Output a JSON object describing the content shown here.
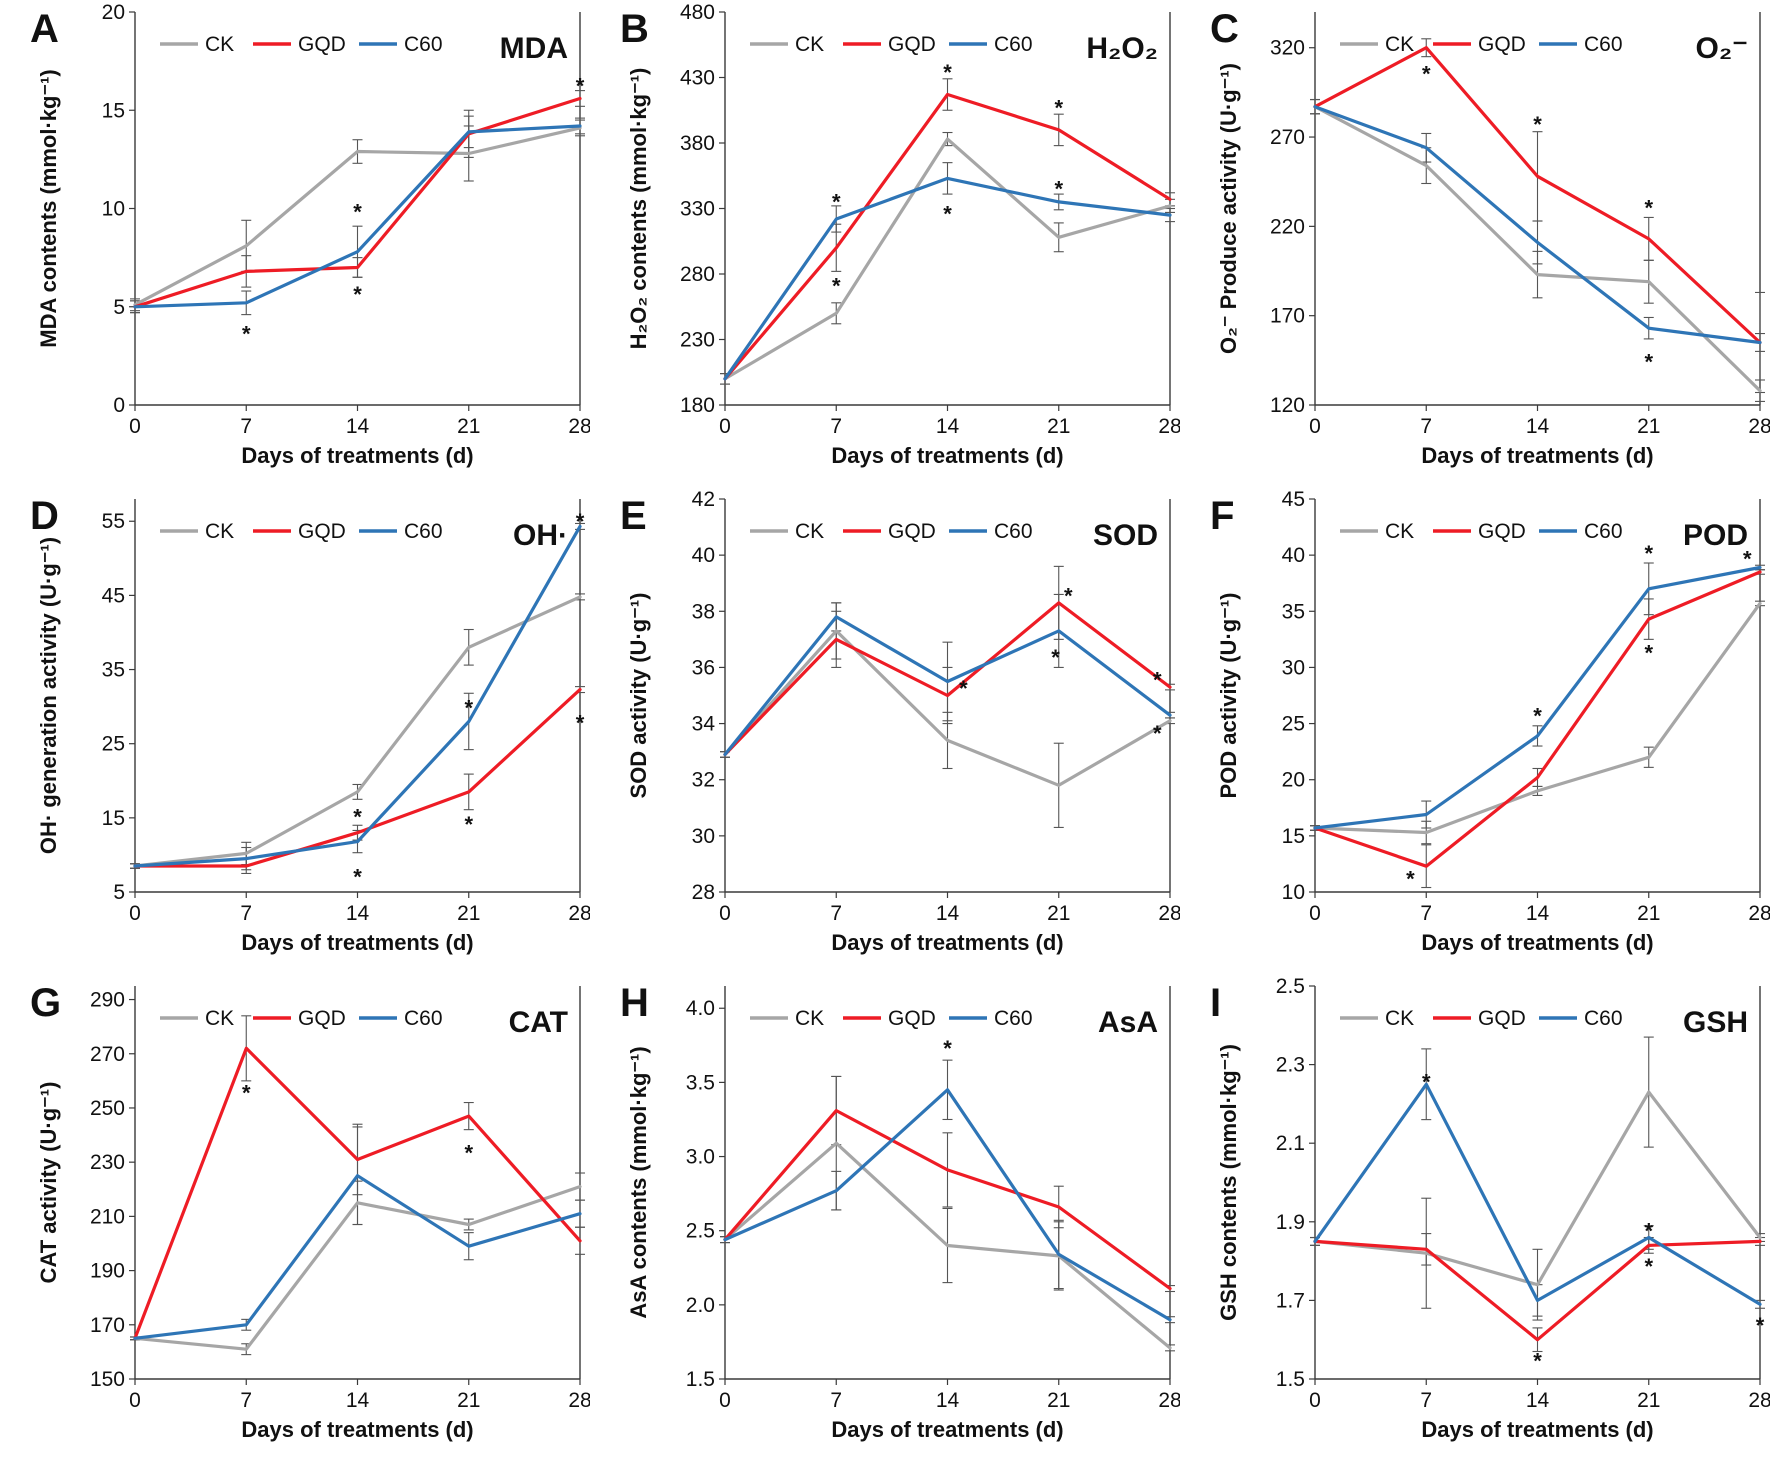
{
  "colors": {
    "CK": "#a6a6a6",
    "GQD": "#ee1c25",
    "C60": "#2e75b6"
  },
  "chart_data": [
    {
      "type": "line",
      "panel": "A",
      "metric": "MDA",
      "ylabel": "MDA contents (mmol·kg⁻¹)",
      "xlabel": "Days of treatments (d)",
      "x": [
        0,
        7,
        14,
        21,
        28
      ],
      "ylim": [
        0,
        20
      ],
      "yticks": [
        0,
        5,
        10,
        15,
        20
      ],
      "series": [
        {
          "name": "CK",
          "values": [
            5.1,
            8.1,
            12.9,
            12.8,
            14.1
          ],
          "err": [
            0.3,
            1.3,
            0.6,
            1.4,
            0.4
          ]
        },
        {
          "name": "GQD",
          "values": [
            5.0,
            6.8,
            7.0,
            13.8,
            15.6
          ],
          "err": [
            0.3,
            0.8,
            0.5,
            1.2,
            0.4
          ]
        },
        {
          "name": "C60",
          "values": [
            5.0,
            5.2,
            7.8,
            13.9,
            14.2
          ],
          "err": [
            0.3,
            0.6,
            1.3,
            0.8,
            0.4
          ]
        }
      ],
      "stars": [
        [
          7,
          3.7
        ],
        [
          14,
          9.9
        ],
        [
          14,
          5.7
        ],
        [
          28,
          16.3
        ]
      ]
    },
    {
      "type": "line",
      "panel": "B",
      "metric": "H₂O₂",
      "ylabel": "H₂O₂ contents (mmol·kg⁻¹)",
      "xlabel": "Days of treatments (d)",
      "x": [
        0,
        7,
        14,
        21,
        28
      ],
      "ylim": [
        180,
        480
      ],
      "yticks": [
        180,
        230,
        280,
        330,
        380,
        430,
        480
      ],
      "series": [
        {
          "name": "CK",
          "values": [
            200,
            250,
            383,
            308,
            332
          ],
          "err": [
            4,
            8,
            5,
            11,
            5
          ]
        },
        {
          "name": "GQD",
          "values": [
            200,
            300,
            417,
            390,
            337
          ],
          "err": [
            4,
            18,
            12,
            12,
            5
          ]
        },
        {
          "name": "C60",
          "values": [
            200,
            322,
            353,
            335,
            325
          ],
          "err": [
            4,
            10,
            12,
            6,
            5
          ]
        }
      ],
      "stars": [
        [
          7,
          336
        ],
        [
          7,
          272
        ],
        [
          14,
          435
        ],
        [
          14,
          327
        ],
        [
          21,
          408
        ],
        [
          21,
          346
        ]
      ]
    },
    {
      "type": "line",
      "panel": "C",
      "metric": "O₂⁻",
      "ylabel": "O₂⁻ Produce activity (U·g⁻¹)",
      "xlabel": "Days of treatments (d)",
      "x": [
        0,
        7,
        14,
        21,
        28
      ],
      "ylim": [
        120,
        340
      ],
      "yticks": [
        120,
        170,
        220,
        270,
        320
      ],
      "series": [
        {
          "name": "CK",
          "values": [
            287,
            254,
            193,
            189,
            128
          ],
          "err": [
            4,
            10,
            13,
            12,
            6
          ]
        },
        {
          "name": "GQD",
          "values": [
            287,
            320,
            248,
            213,
            155
          ],
          "err": [
            4,
            5,
            25,
            12,
            28
          ]
        },
        {
          "name": "C60",
          "values": [
            287,
            264,
            211,
            163,
            155
          ],
          "err": [
            4,
            8,
            12,
            6,
            5
          ]
        }
      ],
      "stars": [
        [
          7,
          306
        ],
        [
          14,
          278
        ],
        [
          21,
          231
        ],
        [
          21,
          145
        ]
      ]
    },
    {
      "type": "line",
      "panel": "D",
      "metric": "OH·",
      "ylabel": "OH· generation activity (U·g⁻¹)",
      "xlabel": "Days of treatments (d)",
      "x": [
        0,
        7,
        14,
        21,
        28
      ],
      "ylim": [
        5,
        58
      ],
      "yticks": [
        5,
        15,
        25,
        35,
        45,
        55
      ],
      "series": [
        {
          "name": "CK",
          "values": [
            8.5,
            10.2,
            18.5,
            38.0,
            44.8
          ],
          "err": [
            0.3,
            1.5,
            1.0,
            2.4,
            0.4
          ]
        },
        {
          "name": "GQD",
          "values": [
            8.5,
            8.5,
            13.0,
            18.5,
            32.3
          ],
          "err": [
            0.3,
            1.0,
            1.0,
            2.4,
            0.4
          ]
        },
        {
          "name": "C60",
          "values": [
            8.5,
            9.5,
            11.8,
            28.0,
            54.3
          ],
          "err": [
            0.3,
            1.5,
            1.5,
            3.8,
            0.4
          ]
        }
      ],
      "stars": [
        [
          14,
          15.3
        ],
        [
          14,
          7.2
        ],
        [
          21,
          30.0
        ],
        [
          21,
          14.3
        ],
        [
          28,
          55.2
        ],
        [
          28,
          28.0
        ]
      ]
    },
    {
      "type": "line",
      "panel": "E",
      "metric": "SOD",
      "ylabel": "SOD activity (U·g⁻¹)",
      "xlabel": "Days of treatments (d)",
      "x": [
        0,
        7,
        14,
        21,
        28
      ],
      "ylim": [
        28,
        42
      ],
      "yticks": [
        28,
        30,
        32,
        34,
        36,
        38,
        40,
        42
      ],
      "series": [
        {
          "name": "CK",
          "values": [
            32.9,
            37.3,
            33.4,
            31.8,
            34.1
          ],
          "err": [
            0.1,
            1.0,
            1.0,
            1.5,
            0.1
          ]
        },
        {
          "name": "GQD",
          "values": [
            32.9,
            37.0,
            35.0,
            38.3,
            35.3
          ],
          "err": [
            0.1,
            1.0,
            1.0,
            1.3,
            0.1
          ]
        },
        {
          "name": "C60",
          "values": [
            32.9,
            37.8,
            35.5,
            37.3,
            34.3
          ],
          "err": [
            0.1,
            0.5,
            1.4,
            1.3,
            0.1
          ]
        }
      ],
      "stars": [
        [
          15,
          35.3
        ],
        [
          21.6,
          38.6
        ],
        [
          20.8,
          36.4
        ],
        [
          27.2,
          35.6
        ],
        [
          27.2,
          33.7
        ]
      ]
    },
    {
      "type": "line",
      "panel": "F",
      "metric": "POD",
      "ylabel": "POD activity (U·g⁻¹)",
      "xlabel": "Days of treatments (d)",
      "x": [
        0,
        7,
        14,
        21,
        28
      ],
      "ylim": [
        10,
        45
      ],
      "yticks": [
        10,
        15,
        20,
        25,
        30,
        35,
        40,
        45
      ],
      "series": [
        {
          "name": "CK",
          "values": [
            15.7,
            15.3,
            19.0,
            22.0,
            35.7
          ],
          "err": [
            0.2,
            1.0,
            0.4,
            0.9,
            0.2
          ]
        },
        {
          "name": "GQD",
          "values": [
            15.7,
            12.3,
            20.2,
            34.3,
            38.5
          ],
          "err": [
            0.2,
            1.9,
            0.8,
            1.8,
            0.2
          ]
        },
        {
          "name": "C60",
          "values": [
            15.7,
            16.9,
            23.9,
            37.0,
            38.9
          ],
          "err": [
            0.2,
            1.2,
            0.9,
            2.3,
            0.2
          ]
        }
      ],
      "stars": [
        [
          6,
          11.3
        ],
        [
          14,
          25.8
        ],
        [
          21,
          40.3
        ],
        [
          21,
          31.4
        ],
        [
          27.2,
          39.8
        ]
      ]
    },
    {
      "type": "line",
      "panel": "G",
      "metric": "CAT",
      "ylabel": "CAT activity (U·g⁻¹)",
      "xlabel": "Days of treatments (d)",
      "x": [
        0,
        7,
        14,
        21,
        28
      ],
      "ylim": [
        150,
        295
      ],
      "yticks": [
        150,
        170,
        190,
        210,
        230,
        250,
        270,
        290
      ],
      "series": [
        {
          "name": "CK",
          "values": [
            165,
            161,
            215,
            207,
            221
          ],
          "err": [
            0.5,
            2,
            8,
            2,
            5
          ]
        },
        {
          "name": "GQD",
          "values": [
            165,
            272,
            231,
            247,
            201
          ],
          "err": [
            0.5,
            12,
            13,
            5,
            5
          ]
        },
        {
          "name": "C60",
          "values": [
            165,
            170,
            225,
            199,
            211
          ],
          "err": [
            0.5,
            2,
            18,
            5,
            5
          ]
        }
      ],
      "stars": [
        [
          7,
          256
        ],
        [
          21,
          234
        ]
      ]
    },
    {
      "type": "line",
      "panel": "H",
      "metric": "AsA",
      "ylabel": "AsA contents (mmol·kg⁻¹)",
      "xlabel": "Days of treatments (d)",
      "x": [
        0,
        7,
        14,
        21,
        28
      ],
      "ylim": [
        1.5,
        4.15
      ],
      "yticks": [
        1.5,
        2.0,
        2.5,
        3.0,
        3.5,
        4.0
      ],
      "series": [
        {
          "name": "CK",
          "values": [
            2.44,
            3.09,
            2.4,
            2.33,
            1.71
          ],
          "err": [
            0.02,
            0.45,
            0.25,
            0.23,
            0.02
          ]
        },
        {
          "name": "GQD",
          "values": [
            2.44,
            3.31,
            2.91,
            2.66,
            2.11
          ],
          "err": [
            0.02,
            0.23,
            0.25,
            0.14,
            0.02
          ]
        },
        {
          "name": "C60",
          "values": [
            2.44,
            2.77,
            3.45,
            2.34,
            1.9
          ],
          "err": [
            0.02,
            0.13,
            0.2,
            0.23,
            0.02
          ]
        }
      ],
      "stars": [
        [
          14,
          3.74
        ]
      ]
    },
    {
      "type": "line",
      "panel": "I",
      "metric": "GSH",
      "ylabel": "GSH contents (mmol·kg⁻¹)",
      "xlabel": "Days of treatments (d)",
      "x": [
        0,
        7,
        14,
        21,
        28
      ],
      "ylim": [
        1.5,
        2.5
      ],
      "yticks": [
        1.5,
        1.7,
        1.9,
        2.1,
        2.3,
        2.5
      ],
      "series": [
        {
          "name": "CK",
          "values": [
            1.85,
            1.82,
            1.74,
            2.23,
            1.86
          ],
          "err": [
            0.01,
            0.14,
            0.09,
            0.14,
            0.01
          ]
        },
        {
          "name": "GQD",
          "values": [
            1.85,
            1.83,
            1.6,
            1.84,
            1.85
          ],
          "err": [
            0.01,
            0.04,
            0.03,
            0.02,
            0.01
          ]
        },
        {
          "name": "C60",
          "values": [
            1.85,
            2.25,
            1.7,
            1.86,
            1.69
          ],
          "err": [
            0.01,
            0.09,
            0.04,
            0.03,
            0.01
          ]
        }
      ],
      "stars": [
        [
          7,
          2.26
        ],
        [
          14,
          1.55
        ],
        [
          21,
          1.88
        ],
        [
          21,
          1.79
        ],
        [
          28,
          1.64
        ]
      ]
    }
  ]
}
